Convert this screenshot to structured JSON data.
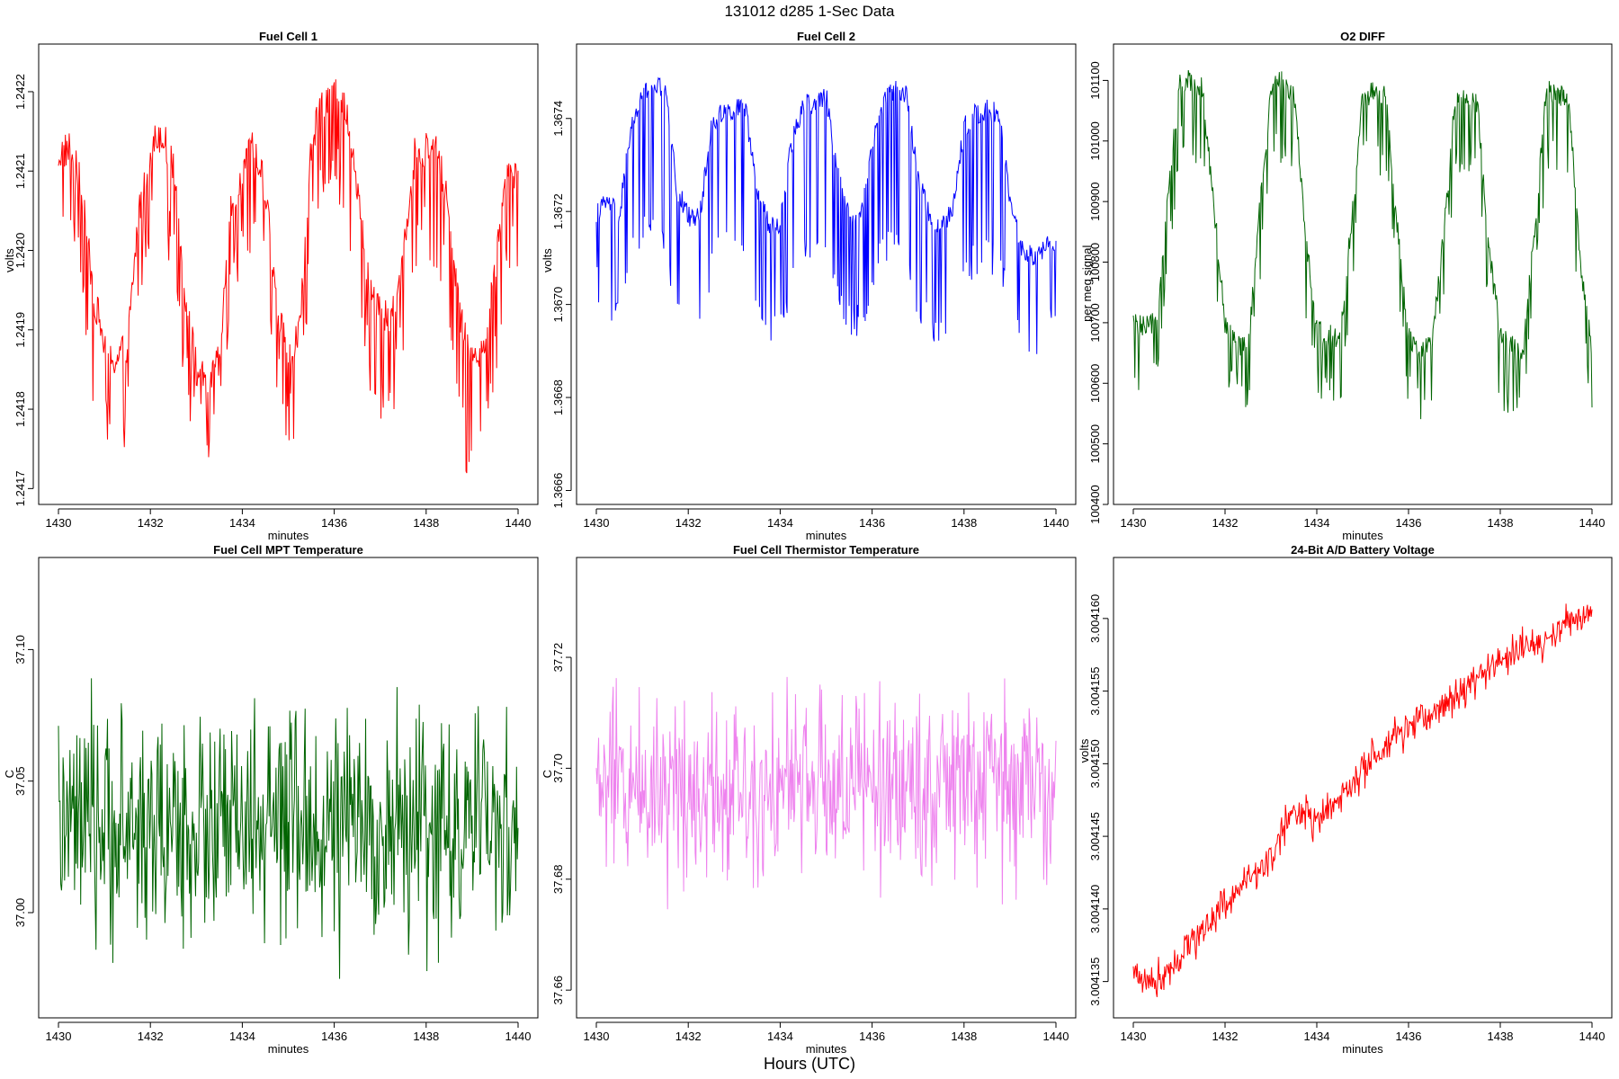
{
  "figure": {
    "title": "131012   d285   1-Sec Data",
    "footer_label": "Hours (UTC)"
  },
  "chart_data": [
    {
      "type": "line",
      "title": "Fuel Cell 1",
      "xlabel": "minutes",
      "ylabel": "volts",
      "color": "#ff0000",
      "xlim": [
        1430,
        1440
      ],
      "ylim": [
        1.24168,
        1.24226
      ],
      "xticks": [
        "1430",
        "1432",
        "1434",
        "1436",
        "1438",
        "1440"
      ],
      "yticks": [
        "1.2417",
        "1.2418",
        "1.2419",
        "1.2420",
        "1.2421",
        "1.2422"
      ],
      "series": [
        {
          "x": [
            1430.0,
            1430.25,
            1430.5,
            1430.75,
            1431.0,
            1431.25,
            1431.5,
            1431.75,
            1432.0,
            1432.25,
            1432.5,
            1432.75,
            1433.0,
            1433.25,
            1433.5,
            1433.75,
            1434.0,
            1434.25,
            1434.5,
            1434.75,
            1435.0,
            1435.25,
            1435.5,
            1435.75,
            1436.0,
            1436.25,
            1436.5,
            1436.75,
            1437.0,
            1437.25,
            1437.5,
            1437.75,
            1438.0,
            1438.25,
            1438.5,
            1438.75,
            1439.0,
            1439.25,
            1439.5,
            1439.75,
            1440.0
          ],
          "y": [
            1.24212,
            1.24213,
            1.24208,
            1.24195,
            1.24188,
            1.24186,
            1.24188,
            1.24205,
            1.24213,
            1.24215,
            1.2421,
            1.24195,
            1.24185,
            1.24183,
            1.24186,
            1.24205,
            1.2421,
            1.24213,
            1.24208,
            1.24193,
            1.24186,
            1.2419,
            1.24213,
            1.24219,
            1.2422,
            1.24218,
            1.24208,
            1.24196,
            1.24192,
            1.24191,
            1.242,
            1.24212,
            1.24213,
            1.24212,
            1.24205,
            1.24191,
            1.24187,
            1.24188,
            1.24198,
            1.2421,
            1.2421
          ],
          "dip_center": [
            1.24206,
            1.24203,
            1.24196,
            1.24183,
            1.24178,
            1.24176,
            1.24179,
            1.24196,
            1.24203,
            1.24205,
            1.24201,
            1.24186,
            1.24178,
            1.24176,
            1.24178,
            1.24196,
            1.24199,
            1.24202,
            1.24198,
            1.24184,
            1.24179,
            1.24181,
            1.24202,
            1.24208,
            1.2421,
            1.24207,
            1.24197,
            1.24186,
            1.24182,
            1.24181,
            1.2419,
            1.24201,
            1.24203,
            1.24201,
            1.24194,
            1.24179,
            1.24172,
            1.24177,
            1.24187,
            1.242,
            1.242
          ]
        }
      ],
      "noise_amplitude": 3.5e-05
    },
    {
      "type": "line",
      "title": "Fuel Cell 2",
      "xlabel": "minutes",
      "ylabel": "volts",
      "color": "#0000ff",
      "xlim": [
        1430,
        1440
      ],
      "ylim": [
        1.36657,
        1.36756
      ],
      "xticks": [
        "1430",
        "1432",
        "1434",
        "1436",
        "1438",
        "1440"
      ],
      "yticks": [
        "1.3666",
        "1.3668",
        "1.3670",
        "1.3672",
        "1.3674"
      ],
      "series": [
        {
          "x": [
            1430.0,
            1430.25,
            1430.5,
            1430.75,
            1431.0,
            1431.25,
            1431.5,
            1431.75,
            1432.0,
            1432.25,
            1432.5,
            1432.75,
            1433.0,
            1433.25,
            1433.5,
            1433.75,
            1434.0,
            1434.25,
            1434.5,
            1434.75,
            1435.0,
            1435.25,
            1435.5,
            1435.75,
            1436.0,
            1436.25,
            1436.5,
            1436.75,
            1437.0,
            1437.25,
            1437.5,
            1437.75,
            1438.0,
            1438.25,
            1438.5,
            1438.75,
            1439.0,
            1439.25,
            1439.5,
            1439.75,
            1440.0
          ],
          "y": [
            1.3672,
            1.36722,
            1.36719,
            1.36738,
            1.36745,
            1.36747,
            1.36746,
            1.36725,
            1.36719,
            1.36719,
            1.36738,
            1.36742,
            1.36742,
            1.36742,
            1.36724,
            1.36717,
            1.36717,
            1.36735,
            1.36743,
            1.36743,
            1.36745,
            1.36728,
            1.36719,
            1.36719,
            1.36735,
            1.36744,
            1.36746,
            1.36745,
            1.36727,
            1.36719,
            1.36717,
            1.3672,
            1.36738,
            1.36741,
            1.36742,
            1.36741,
            1.36723,
            1.36712,
            1.3671,
            1.36712,
            1.36714
          ],
          "dip_center": [
            1.36705,
            1.367,
            1.36697,
            1.3671,
            1.36715,
            1.36718,
            1.36714,
            1.367,
            1.36696,
            1.36697,
            1.36708,
            1.36713,
            1.36712,
            1.36712,
            1.367,
            1.36694,
            1.36694,
            1.36706,
            1.36712,
            1.36712,
            1.36714,
            1.36702,
            1.36697,
            1.36697,
            1.36704,
            1.36712,
            1.36714,
            1.36713,
            1.367,
            1.36696,
            1.36693,
            1.36697,
            1.36706,
            1.3671,
            1.3671,
            1.36709,
            1.367,
            1.36693,
            1.36692,
            1.36693,
            1.367
          ]
        }
      ],
      "noise_amplitude": 3.5e-05
    },
    {
      "type": "line",
      "title": "O2 DIFF",
      "xlabel": "minutes",
      "ylabel": "per meg signal",
      "color": "#006400",
      "xlim": [
        1430,
        1440
      ],
      "ylim": [
        100400,
        101160
      ],
      "xticks": [
        "1430",
        "1432",
        "1434",
        "1436",
        "1438",
        "1440"
      ],
      "yticks": [
        "100400",
        "100500",
        "100600",
        "100700",
        "100800",
        "100900",
        "101000",
        "101100"
      ],
      "series": [
        {
          "x": [
            1430.0,
            1430.25,
            1430.5,
            1430.75,
            1431.0,
            1431.25,
            1431.5,
            1431.75,
            1432.0,
            1432.25,
            1432.5,
            1432.75,
            1433.0,
            1433.25,
            1433.5,
            1433.75,
            1434.0,
            1434.25,
            1434.5,
            1434.75,
            1435.0,
            1435.25,
            1435.5,
            1435.75,
            1436.0,
            1436.25,
            1436.5,
            1436.75,
            1437.0,
            1437.25,
            1437.5,
            1437.75,
            1438.0,
            1438.25,
            1438.5,
            1438.75,
            1439.0,
            1439.25,
            1439.5,
            1439.75,
            1440.0
          ],
          "y": [
            100700,
            100690,
            100700,
            100900,
            101090,
            101100,
            101090,
            100900,
            100700,
            100670,
            100650,
            100880,
            101080,
            101100,
            101080,
            100850,
            100690,
            100680,
            100670,
            100860,
            101070,
            101080,
            101070,
            100860,
            100680,
            100650,
            100660,
            100830,
            101060,
            101070,
            101060,
            100820,
            100680,
            100660,
            100650,
            100860,
            101080,
            101080,
            101060,
            100800,
            100650
          ],
          "dip_center": [
            100620,
            100610,
            100620,
            100800,
            100990,
            101000,
            100990,
            100800,
            100610,
            100590,
            100580,
            100780,
            100980,
            100990,
            100980,
            100750,
            100600,
            100590,
            100580,
            100760,
            100970,
            100980,
            100970,
            100760,
            100590,
            100560,
            100570,
            100730,
            100960,
            100970,
            100960,
            100720,
            100590,
            100570,
            100560,
            100760,
            100980,
            100980,
            100960,
            100700,
            100570
          ]
        }
      ],
      "noise_amplitude": 30
    },
    {
      "type": "line",
      "title": "Fuel Cell MPT Temperature",
      "xlabel": "minutes",
      "ylabel": "C",
      "color": "#006400",
      "xlim": [
        1430,
        1440
      ],
      "ylim": [
        36.96,
        37.135
      ],
      "xticks": [
        "1430",
        "1432",
        "1434",
        "1436",
        "1438",
        "1440"
      ],
      "yticks": [
        "37.00",
        "37.05",
        "37.10"
      ],
      "series": [
        {
          "x": [
            1430,
            1440
          ],
          "y": [
            37.032,
            37.032
          ]
        }
      ],
      "noise_amplitude": 0.03
    },
    {
      "type": "line",
      "title": "Fuel Cell Thermistor Temperature",
      "xlabel": "minutes",
      "ylabel": "C",
      "color": "#ee82ee",
      "xlim": [
        1430,
        1440
      ],
      "ylim": [
        37.655,
        37.738
      ],
      "xticks": [
        "1430",
        "1432",
        "1434",
        "1436",
        "1438",
        "1440"
      ],
      "yticks": [
        "37.66",
        "37.68",
        "37.70",
        "37.72"
      ],
      "series": [
        {
          "x": [
            1430,
            1440
          ],
          "y": [
            37.697,
            37.697
          ]
        }
      ],
      "noise_amplitude": 0.012
    },
    {
      "type": "line",
      "title": "24-Bit A/D Battery Voltage",
      "xlabel": "minutes",
      "ylabel": "volts",
      "color": "#ff0000",
      "xlim": [
        1430,
        1440
      ],
      "ylim": [
        3.0041325,
        3.0041642
      ],
      "xticks": [
        "1430",
        "1432",
        "1434",
        "1436",
        "1438",
        "1440"
      ],
      "yticks": [
        "3.004135",
        "3.004140",
        "3.004145",
        "3.004150",
        "3.004155",
        "3.004160"
      ],
      "series": [
        {
          "x": [
            1430.0,
            1430.5,
            1431.0,
            1431.5,
            1432.0,
            1432.5,
            1433.0,
            1433.5,
            1434.0,
            1434.5,
            1435.0,
            1435.5,
            1436.0,
            1436.5,
            1437.0,
            1437.5,
            1438.0,
            1438.5,
            1439.0,
            1439.5,
            1440.0
          ],
          "y": [
            3.0041355,
            3.004135,
            3.0041368,
            3.0041385,
            3.0041405,
            3.004142,
            3.0041435,
            3.004147,
            3.004146,
            3.0041475,
            3.0041495,
            3.004151,
            3.0041525,
            3.0041535,
            3.0041545,
            3.004156,
            3.004157,
            3.004158,
            3.0041585,
            3.0041597,
            3.0041607
          ]
        }
      ],
      "noise_amplitude": 9e-07
    }
  ]
}
